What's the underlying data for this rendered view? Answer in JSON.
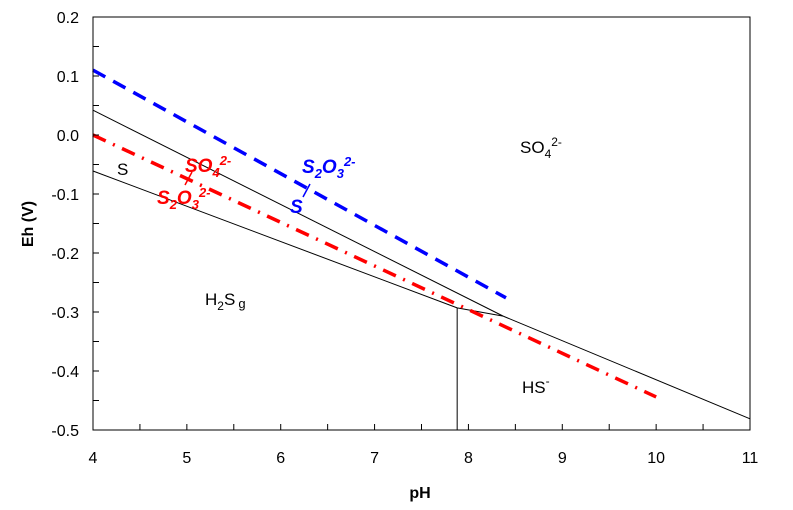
{
  "chart_data": {
    "type": "line",
    "xlabel": "pH",
    "ylabel": "Eh (V)",
    "xlim": [
      4,
      11
    ],
    "ylim": [
      -0.5,
      0.2
    ],
    "xticks": [
      "4",
      "5",
      "6",
      "7",
      "8",
      "9",
      "10",
      "11"
    ],
    "yticks": [
      "0.2",
      "0.1",
      "0.0",
      "-0.1",
      "-0.2",
      "-0.3",
      "-0.4",
      "-0.5"
    ],
    "grid": false,
    "series": [
      {
        "style": "solid",
        "color": "#000000",
        "x": [
          4,
          8.37
        ],
        "y": [
          0.042,
          -0.307
        ]
      },
      {
        "style": "solid",
        "color": "#000000",
        "x": [
          4,
          7.88
        ],
        "y": [
          -0.061,
          -0.293
        ]
      },
      {
        "style": "solid",
        "color": "#000000",
        "x": [
          7.88,
          7.88
        ],
        "y": [
          -0.293,
          -0.5
        ]
      },
      {
        "style": "solid",
        "color": "#000000",
        "x": [
          7.88,
          8.37
        ],
        "y": [
          -0.293,
          -0.307
        ]
      },
      {
        "style": "solid",
        "color": "#000000",
        "x": [
          8.37,
          11
        ],
        "y": [
          -0.307,
          -0.481
        ]
      },
      {
        "style": "dashed",
        "color": "#0000FF",
        "x": [
          4,
          8.4
        ],
        "y": [
          0.11,
          -0.276
        ]
      },
      {
        "style": "dashdot",
        "color": "#FF0000",
        "x": [
          4,
          10
        ],
        "y": [
          0.0,
          -0.444
        ]
      }
    ],
    "regions": [
      {
        "label": "SO4",
        "sup": "2-",
        "x": 5.9,
        "y": -0.02
      },
      {
        "label": "S",
        "x": 4.25,
        "y": -0.06
      },
      {
        "label": "H2S",
        "sub": "2",
        "tail": "g",
        "x": 5.2,
        "y": -0.27
      },
      {
        "label": "HS",
        "sup": "-",
        "x": 8.6,
        "y": -0.43
      }
    ],
    "annotations": [
      {
        "text": "SO4 2-",
        "color": "#FF0000"
      },
      {
        "text": "S2O3 2-",
        "color": "#FF0000"
      },
      {
        "text": "S2O3 2-",
        "color": "#0000FF"
      },
      {
        "text": "S",
        "color": "#0000FF"
      }
    ]
  },
  "labels": {
    "so4": "SO",
    "so4_sub": "4",
    "so4_sup": "2-",
    "s": "S",
    "h2s_a": "H",
    "h2s_sub": "2",
    "h2s_b": "S",
    "h2s_g": "g",
    "hs": "HS",
    "hs_sup": "-",
    "red_so4": "SO",
    "red_so4_sub": "4",
    "red_so4_sup": "2-",
    "red_s2o3_a": "S",
    "red_s2o3_sub1": "2",
    "red_s2o3_b": "O",
    "red_s2o3_sub2": "3",
    "red_s2o3_sup": "2-",
    "blue_s2o3_a": "S",
    "blue_s2o3_sub1": "2",
    "blue_s2o3_b": "O",
    "blue_s2o3_sub2": "3",
    "blue_s2o3_sup": "2-",
    "blue_s": "S"
  }
}
